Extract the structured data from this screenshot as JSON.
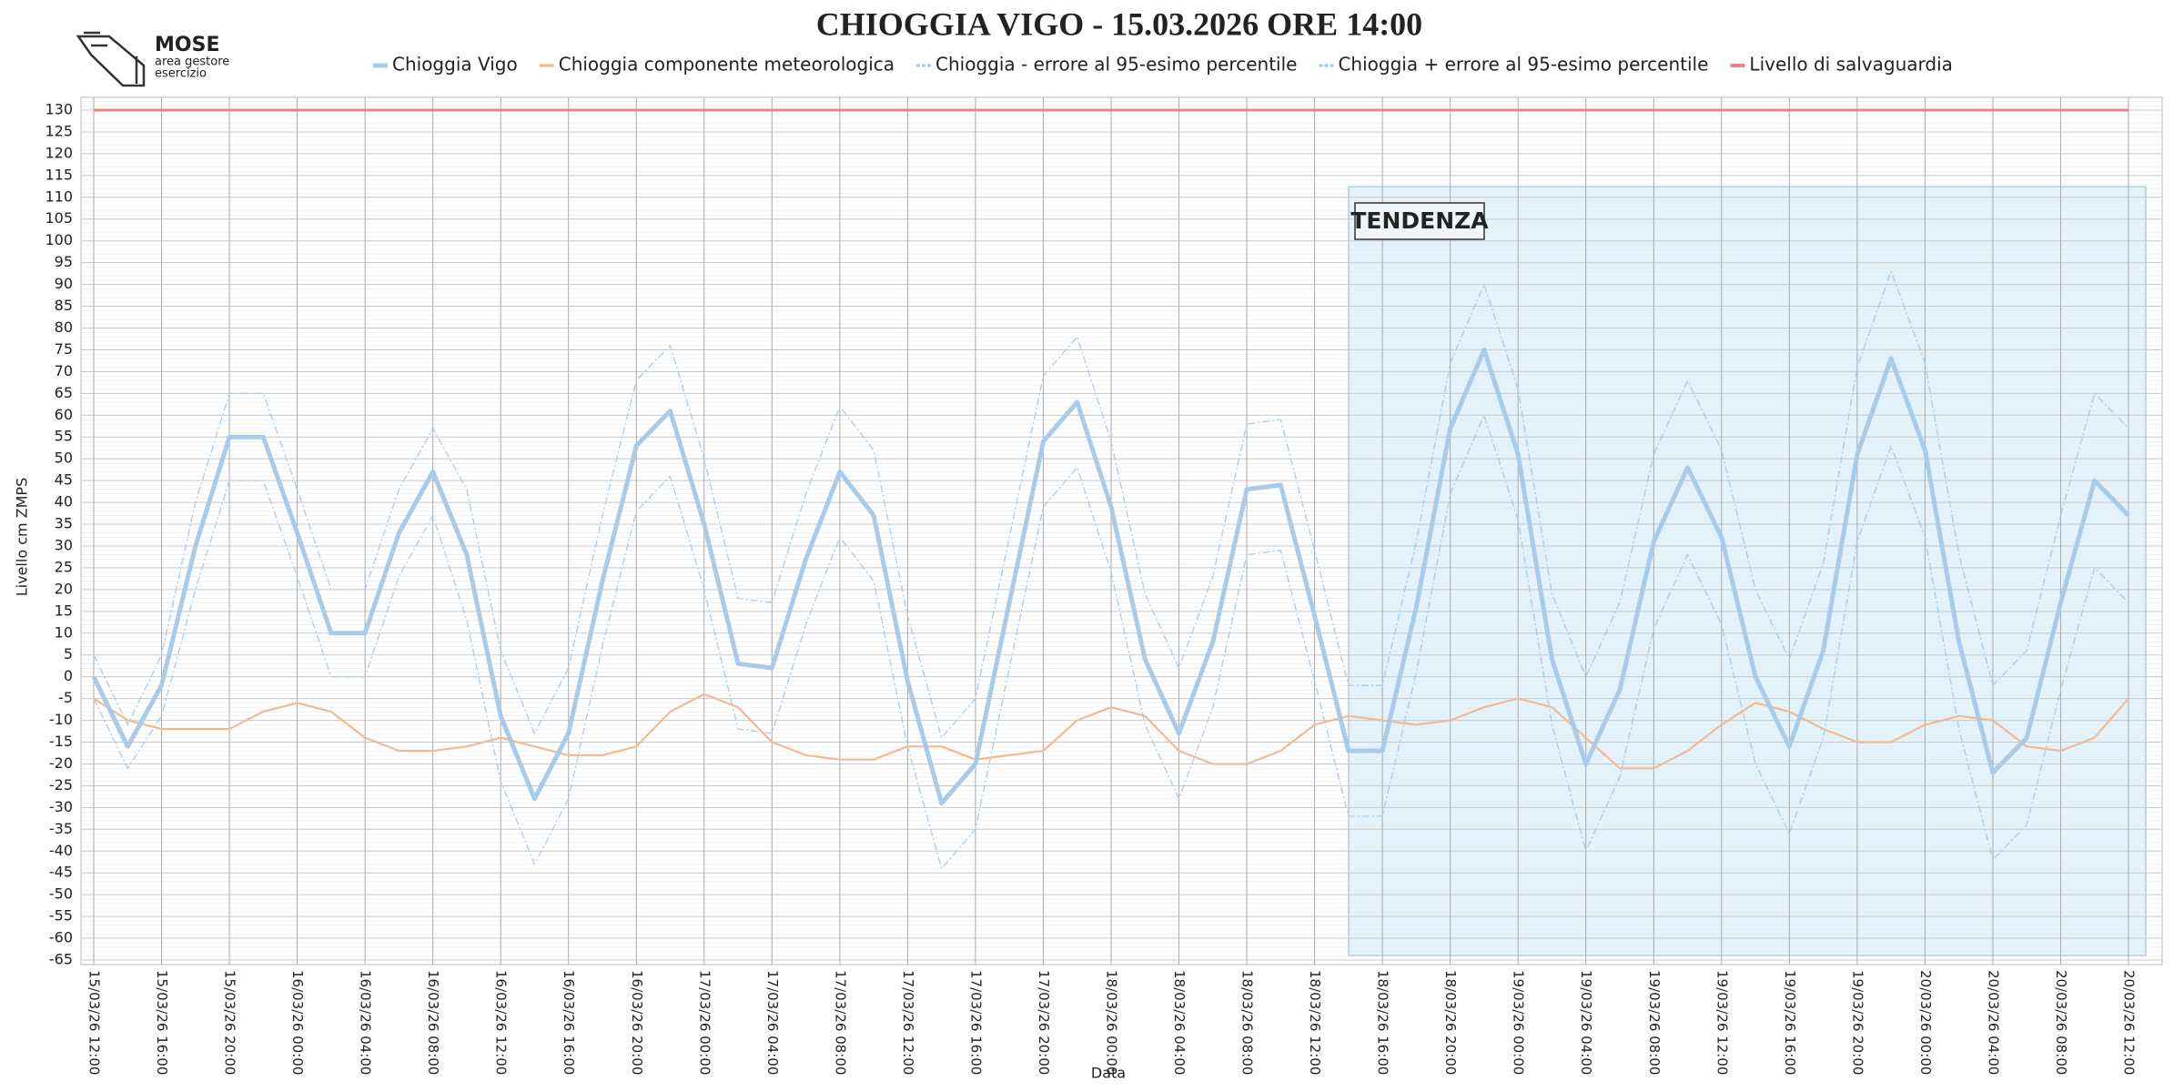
{
  "logo": {
    "title": "MOSE",
    "lines": [
      "area gestore",
      "esercizio"
    ]
  },
  "chart_data": {
    "type": "line",
    "title": "CHIOGGIA VIGO - 15.03.2026 ORE 14:00",
    "x_label": "Data",
    "y_label": "Livello cm ZMPS",
    "annotation": "TENDENZA",
    "categories": [
      "15/03/26 12:00",
      null,
      "15/03/26 16:00",
      null,
      "15/03/26 20:00",
      null,
      "16/03/26 00:00",
      null,
      "16/03/26 04:00",
      null,
      "16/03/26 08:00",
      null,
      "16/03/26 12:00",
      null,
      "16/03/26 16:00",
      null,
      "16/03/26 20:00",
      null,
      "17/03/26 00:00",
      null,
      "17/03/26 04:00",
      null,
      "17/03/26 08:00",
      null,
      "17/03/26 12:00",
      null,
      "17/03/26 16:00",
      null,
      "17/03/26 20:00",
      null,
      "18/03/26 00:00",
      null,
      "18/03/26 04:00",
      null,
      "18/03/26 08:00",
      null,
      "18/03/26 12:00",
      null,
      "18/03/26 16:00",
      null,
      "18/03/26 20:00",
      null,
      "19/03/26 00:00",
      null,
      "19/03/26 04:00",
      null,
      "19/03/26 08:00",
      null,
      "19/03/26 12:00",
      null,
      "19/03/26 16:00",
      null,
      "19/03/26 20:00",
      null,
      "20/03/26 00:00",
      null,
      "20/03/26 04:00",
      null,
      "20/03/26 08:00",
      null,
      "20/03/26 12:00"
    ],
    "series": [
      {
        "name": "Chioggia Vigo",
        "color": "#a9cbea",
        "style": "thick",
        "values": [
          0,
          -16,
          -2,
          30,
          55,
          55,
          33,
          10,
          10,
          33,
          47,
          28,
          -9,
          -28,
          -13,
          22,
          53,
          61,
          35,
          3,
          2,
          27,
          47,
          37,
          -1,
          -29,
          -20,
          17,
          54,
          63,
          39,
          4,
          -13,
          8,
          43,
          44,
          14,
          -17,
          -17,
          16,
          57,
          75,
          51,
          4,
          -20,
          -3,
          31,
          48,
          32,
          0,
          -16,
          6,
          51,
          73,
          52,
          8,
          -22,
          -14,
          17,
          45,
          37
        ]
      },
      {
        "name": "Chioggia componente meteorologica",
        "color": "#f5b990",
        "style": "thin",
        "values": [
          -5,
          -10,
          -12,
          -12,
          -12,
          -8,
          -6,
          -8,
          -14,
          -17,
          -17,
          -16,
          -14,
          -16,
          -18,
          -18,
          -16,
          -8,
          -4,
          -7,
          -15,
          -18,
          -19,
          -19,
          -16,
          -16,
          -19,
          -18,
          -17,
          -10,
          -7,
          -9,
          -17,
          -20,
          -20,
          -17,
          -11,
          -9,
          -10,
          -11,
          -10,
          -7,
          -5,
          -7,
          -14,
          -21,
          -21,
          -17,
          -11,
          -6,
          -8,
          -12,
          -15,
          -15,
          -11,
          -9,
          -10,
          -16,
          -17,
          -14,
          -5
        ]
      },
      {
        "name": "Chioggia - errore al 95-esimo percentile",
        "color": "#a9cbea",
        "style": "dashed",
        "values": [
          -5,
          -21,
          -9,
          20,
          45,
          45,
          23,
          0,
          0,
          23,
          37,
          13,
          -24,
          -43,
          -28,
          7,
          38,
          46,
          20,
          -12,
          -13,
          12,
          32,
          22,
          -16,
          -44,
          -35,
          2,
          39,
          48,
          24,
          -11,
          -28,
          -7,
          28,
          29,
          -1,
          -32,
          -32,
          1,
          42,
          60,
          36,
          -11,
          -40,
          -23,
          11,
          28,
          12,
          -20,
          -36,
          -14,
          31,
          53,
          32,
          -12,
          -42,
          -34,
          -3,
          25,
          17
        ]
      },
      {
        "name": "Chioggia + errore al 95-esimo percentile",
        "color": "#a9cbea",
        "style": "dashed",
        "values": [
          5,
          -11,
          5,
          40,
          65,
          65,
          43,
          20,
          20,
          43,
          57,
          43,
          6,
          -13,
          2,
          37,
          68,
          76,
          50,
          18,
          17,
          42,
          62,
          52,
          14,
          -14,
          -5,
          32,
          69,
          78,
          54,
          19,
          2,
          23,
          58,
          59,
          29,
          -2,
          -2,
          31,
          72,
          90,
          66,
          19,
          0,
          17,
          51,
          68,
          52,
          20,
          4,
          26,
          71,
          93,
          72,
          28,
          -2,
          6,
          37,
          65,
          57
        ]
      },
      {
        "name": "Livello di salvaguardia",
        "color": "#f08080",
        "style": "medium",
        "values": [
          130,
          130,
          130,
          130,
          130,
          130,
          130,
          130,
          130,
          130,
          130,
          130,
          130,
          130,
          130,
          130,
          130,
          130,
          130,
          130,
          130,
          130,
          130,
          130,
          130,
          130,
          130,
          130,
          130,
          130,
          130,
          130,
          130,
          130,
          130,
          130,
          130,
          130,
          130,
          130,
          130,
          130,
          130,
          130,
          130,
          130,
          130,
          130,
          130,
          130,
          130,
          130,
          130,
          130,
          130,
          130,
          130,
          130,
          130,
          130,
          130
        ]
      }
    ],
    "ylim": [
      -65,
      130
    ],
    "yticks": [
      -65,
      -60,
      -55,
      -50,
      -45,
      -40,
      -35,
      -30,
      -25,
      -20,
      -15,
      -10,
      -5,
      0,
      5,
      10,
      15,
      20,
      25,
      30,
      35,
      40,
      45,
      50,
      55,
      60,
      65,
      70,
      75,
      80,
      85,
      90,
      95,
      100,
      105,
      110,
      115,
      120,
      125,
      130
    ],
    "grid": true,
    "legend": "top"
  }
}
